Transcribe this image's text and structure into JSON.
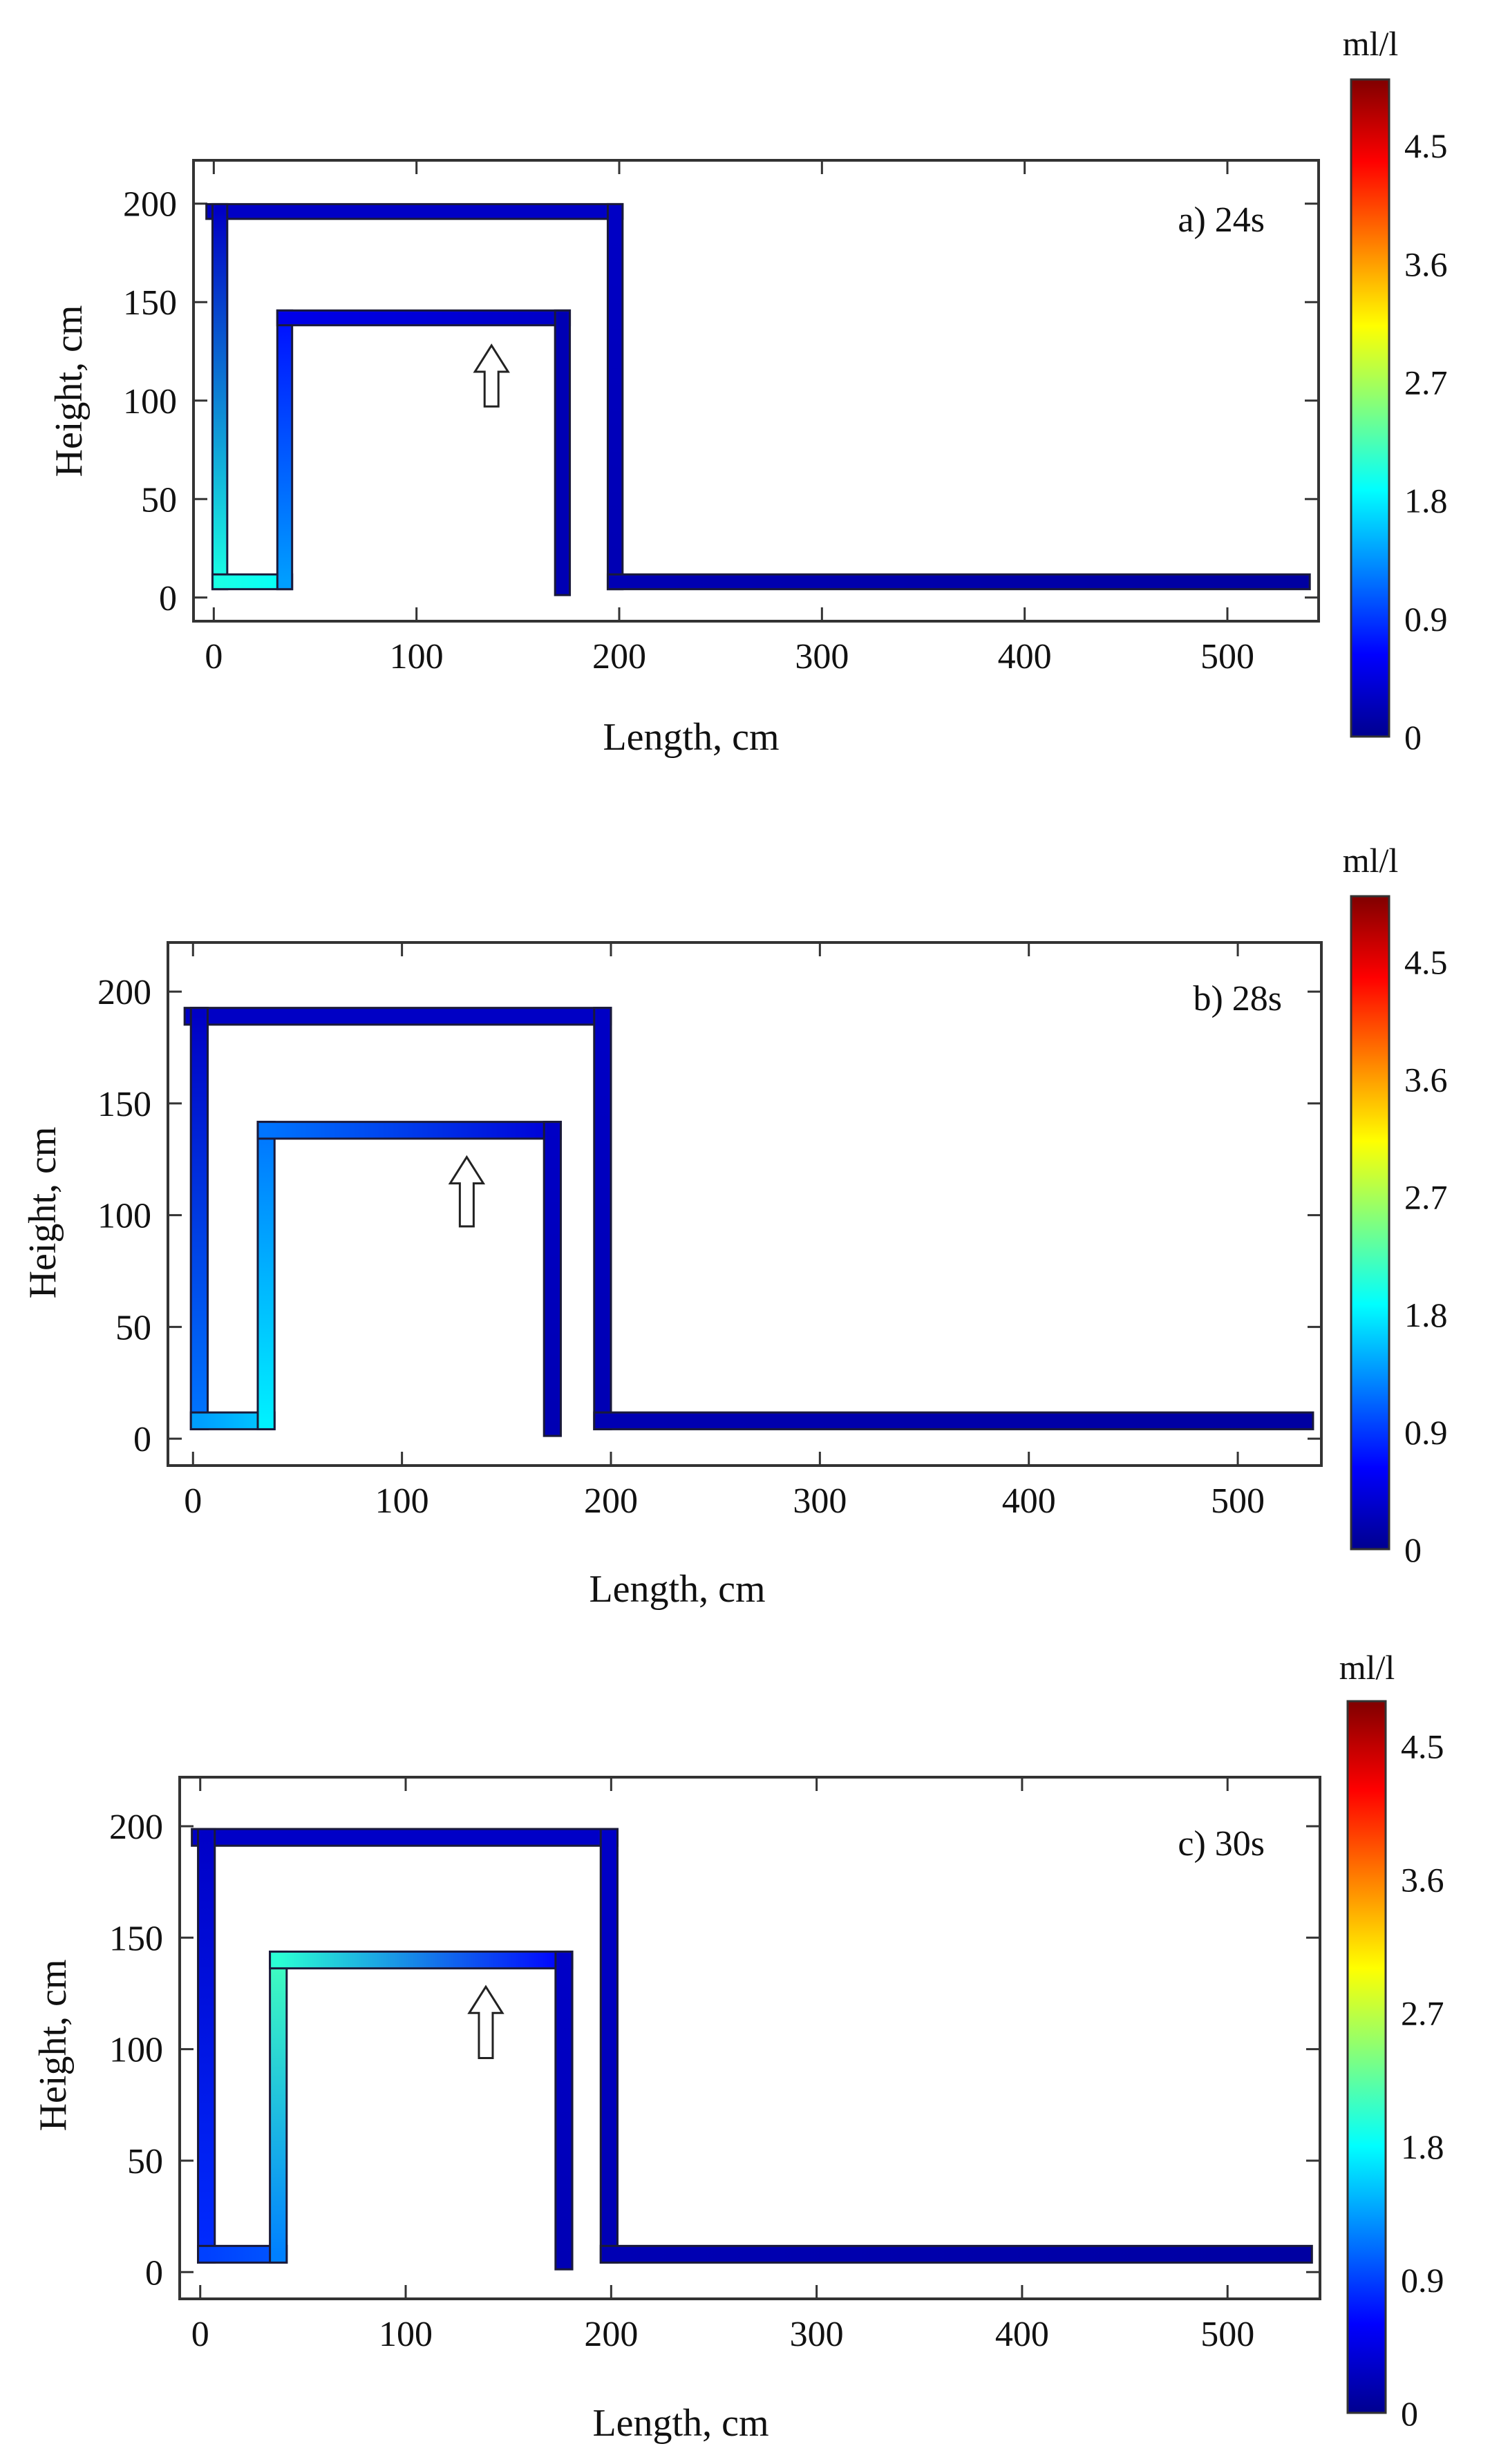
{
  "figure": {
    "panels": [
      {
        "id": "a",
        "label": "a) 24s"
      },
      {
        "id": "b",
        "label": "b) 28s"
      },
      {
        "id": "c",
        "label": "c) 30s"
      }
    ]
  },
  "chart_data": [
    {
      "type": "heatmap",
      "panel_label": "a) 24s",
      "xlabel": "Length, cm",
      "ylabel": "Height, cm",
      "xlim": [
        -10,
        545
      ],
      "ylim": [
        -12,
        222
      ],
      "xticks": [
        0,
        100,
        200,
        300,
        400,
        500
      ],
      "yticks": [
        0,
        50,
        100,
        150,
        200
      ],
      "grid": false,
      "arrow": {
        "x": 137,
        "y_start": 97,
        "y_end": 128,
        "direction": "up"
      },
      "colorbar": {
        "title": "ml/l",
        "min": 0,
        "max": 5,
        "ticks": [
          0,
          0.9,
          1.8,
          2.7,
          3.6,
          4.5
        ]
      },
      "segments": [
        {
          "name": "outer-top",
          "from": [
            0,
            196
          ],
          "to": [
            198,
            196
          ],
          "c0": 0.3,
          "c1": 0.3
        },
        {
          "name": "outer-left",
          "from": [
            3,
            8
          ],
          "to": [
            3,
            196
          ],
          "c0": 2.0,
          "c1": 0.3
        },
        {
          "name": "bottom-left",
          "from": [
            3,
            8
          ],
          "to": [
            35,
            8
          ],
          "c0": 2.0,
          "c1": 1.9
        },
        {
          "name": "inner-left",
          "from": [
            35,
            8
          ],
          "to": [
            35,
            142
          ],
          "c0": 1.4,
          "c1": 0.7
        },
        {
          "name": "inner-top",
          "from": [
            35,
            142
          ],
          "to": [
            172,
            142
          ],
          "c0": 0.5,
          "c1": 0.3
        },
        {
          "name": "inner-right",
          "from": [
            172,
            142
          ],
          "to": [
            172,
            5
          ],
          "c0": 0.2,
          "c1": 0.2
        },
        {
          "name": "outer-right",
          "from": [
            198,
            196
          ],
          "to": [
            198,
            8
          ],
          "c0": 0.3,
          "c1": 0.2
        },
        {
          "name": "bottom-channel",
          "from": [
            198,
            8
          ],
          "to": [
            537,
            8
          ],
          "c0": 0.2,
          "c1": 0.1
        }
      ]
    },
    {
      "type": "heatmap",
      "panel_label": "b) 28s",
      "xlabel": "Length, cm",
      "ylabel": "Height, cm",
      "xlim": [
        -12,
        540
      ],
      "ylim": [
        -12,
        222
      ],
      "xticks": [
        0,
        100,
        200,
        300,
        400,
        500
      ],
      "yticks": [
        0,
        50,
        100,
        150,
        200
      ],
      "grid": false,
      "arrow": {
        "x": 131,
        "y_start": 95,
        "y_end": 126,
        "direction": "up"
      },
      "colorbar": {
        "title": "ml/l",
        "min": 0,
        "max": 5,
        "ticks": [
          0,
          0.9,
          1.8,
          2.7,
          3.6,
          4.5
        ]
      },
      "segments": [
        {
          "name": "outer-top",
          "from": [
            0,
            189
          ],
          "to": [
            196,
            189
          ],
          "c0": 0.3,
          "c1": 0.3
        },
        {
          "name": "outer-left",
          "from": [
            3,
            8
          ],
          "to": [
            3,
            189
          ],
          "c0": 1.2,
          "c1": 0.3
        },
        {
          "name": "bottom-left",
          "from": [
            3,
            8
          ],
          "to": [
            35,
            8
          ],
          "c0": 1.4,
          "c1": 1.6
        },
        {
          "name": "inner-left",
          "from": [
            35,
            8
          ],
          "to": [
            35,
            138
          ],
          "c0": 1.8,
          "c1": 1.2
        },
        {
          "name": "inner-top",
          "from": [
            35,
            138
          ],
          "to": [
            172,
            138
          ],
          "c0": 1.2,
          "c1": 0.4
        },
        {
          "name": "inner-right",
          "from": [
            172,
            138
          ],
          "to": [
            172,
            5
          ],
          "c0": 0.3,
          "c1": 0.2
        },
        {
          "name": "outer-right",
          "from": [
            196,
            189
          ],
          "to": [
            196,
            8
          ],
          "c0": 0.3,
          "c1": 0.2
        },
        {
          "name": "bottom-channel",
          "from": [
            196,
            8
          ],
          "to": [
            532,
            8
          ],
          "c0": 0.2,
          "c1": 0.1
        }
      ]
    },
    {
      "type": "heatmap",
      "panel_label": "c) 30s",
      "xlabel": "Length, cm",
      "ylabel": "Height, cm",
      "xlim": [
        -10,
        545
      ],
      "ylim": [
        -12,
        222
      ],
      "xticks": [
        0,
        100,
        200,
        300,
        400,
        500
      ],
      "yticks": [
        0,
        50,
        100,
        150,
        200
      ],
      "grid": false,
      "arrow": {
        "x": 139,
        "y_start": 96,
        "y_end": 128,
        "direction": "up"
      },
      "colorbar": {
        "title": "ml/l",
        "min": 0,
        "max": 4.8,
        "ticks": [
          0,
          0.9,
          1.8,
          2.7,
          3.6,
          4.5
        ]
      },
      "segments": [
        {
          "name": "outer-top",
          "from": [
            0,
            195
          ],
          "to": [
            199,
            195
          ],
          "c0": 0.3,
          "c1": 0.3
        },
        {
          "name": "outer-left",
          "from": [
            3,
            8
          ],
          "to": [
            3,
            195
          ],
          "c0": 0.8,
          "c1": 0.3
        },
        {
          "name": "bottom-left",
          "from": [
            3,
            8
          ],
          "to": [
            38,
            8
          ],
          "c0": 0.9,
          "c1": 1.0
        },
        {
          "name": "inner-left",
          "from": [
            38,
            8
          ],
          "to": [
            38,
            140
          ],
          "c0": 1.2,
          "c1": 2.1
        },
        {
          "name": "inner-top",
          "from": [
            38,
            140
          ],
          "to": [
            177,
            140
          ],
          "c0": 2.0,
          "c1": 0.6
        },
        {
          "name": "inner-right",
          "from": [
            177,
            140
          ],
          "to": [
            177,
            5
          ],
          "c0": 0.3,
          "c1": 0.2
        },
        {
          "name": "outer-right",
          "from": [
            199,
            195
          ],
          "to": [
            199,
            8
          ],
          "c0": 0.3,
          "c1": 0.2
        },
        {
          "name": "bottom-channel",
          "from": [
            199,
            8
          ],
          "to": [
            537,
            8
          ],
          "c0": 0.2,
          "c1": 0.1
        }
      ]
    }
  ]
}
